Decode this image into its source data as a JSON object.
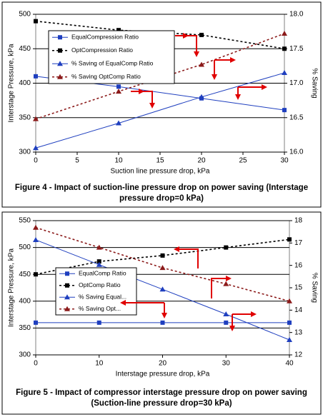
{
  "chart_data": [
    {
      "type": "line",
      "title": "Figure 4 - Impact of suction-line pressure drop on power saving (Interstage pressure drop=0 kPa)",
      "x_label": "Suction line pressure drop, kPa",
      "y_label": "Interstage Pressure, kPa",
      "y2_label": "% Saving",
      "x": [
        0,
        10,
        20,
        30
      ],
      "xlim": [
        0,
        30
      ],
      "xticks": [
        0,
        5,
        10,
        15,
        20,
        25,
        30
      ],
      "ylim": [
        300,
        500
      ],
      "yticks": [
        300,
        350,
        400,
        450,
        500
      ],
      "y2lim": [
        16,
        18
      ],
      "y2ticks": [
        {
          "value": 16,
          "label": "16.0"
        },
        {
          "value": 16.5,
          "label": "16.5"
        },
        {
          "value": 17,
          "label": "17.0"
        },
        {
          "value": 17.5,
          "label": "17.5"
        },
        {
          "value": 18,
          "label": "18.0"
        }
      ],
      "grid": true,
      "legend": "upper left",
      "series": [
        {
          "name": "EqualCompression Ratio",
          "color": "#1f3fbf",
          "marker": "square",
          "dashed": false,
          "values": [
            410,
            395,
            378,
            361
          ]
        },
        {
          "name": "OptCompression Ratio",
          "color": "#000000",
          "marker": "square",
          "dashed": true,
          "values": [
            490,
            477,
            470,
            450
          ]
        },
        {
          "name": "% Saving of EqualComp Ratio",
          "color": "#1f3fbf",
          "marker": "triangle",
          "dashed": false,
          "axis": "y2",
          "values": [
            16.06,
            16.42,
            16.8,
            17.15
          ]
        },
        {
          "name": "% Saving OptComp Ratio",
          "color": "#8b1a1a",
          "marker": "triangle",
          "dashed": true,
          "axis": "y2",
          "values": [
            16.48,
            16.88,
            17.27,
            17.72
          ]
        }
      ]
    },
    {
      "type": "line",
      "title": "Figure 5 - Impact of compressor interstage pressure drop on power saving (Suction-line pressure drop=30 kPa)",
      "x_label": "Interstage pressure drop, kPa",
      "y_label": "Interstage Pressure, kPa",
      "y2_label": "% Saving",
      "x": [
        0,
        10,
        20,
        30,
        40
      ],
      "xlim": [
        0,
        40
      ],
      "xticks": [
        0,
        10,
        20,
        30,
        40
      ],
      "ylim": [
        300,
        550
      ],
      "yticks": [
        300,
        350,
        400,
        450,
        500,
        550
      ],
      "y2lim": [
        12,
        18
      ],
      "y2ticks": [
        12,
        13,
        14,
        15,
        16,
        17,
        18
      ],
      "grid": true,
      "legend": "center left",
      "series": [
        {
          "name": "EqualComp Ratio",
          "color": "#1f3fbf",
          "marker": "square",
          "dashed": false,
          "values": [
            360,
            360,
            360,
            360,
            360
          ]
        },
        {
          "name": "OptComp Ratio",
          "color": "#000000",
          "marker": "square",
          "dashed": true,
          "values": [
            450,
            474,
            485,
            500,
            515
          ]
        },
        {
          "name": "% Saving Equal...",
          "color": "#1f3fbf",
          "marker": "triangle",
          "dashed": false,
          "axis": "y2",
          "values": [
            17.14,
            16.03,
            14.93,
            13.82,
            12.67
          ]
        },
        {
          "name": "% Saving Opt...",
          "color": "#8b1a1a",
          "marker": "triangle",
          "dashed": true,
          "axis": "y2",
          "values": [
            17.69,
            16.8,
            15.89,
            15.17,
            14.4
          ]
        }
      ]
    }
  ]
}
